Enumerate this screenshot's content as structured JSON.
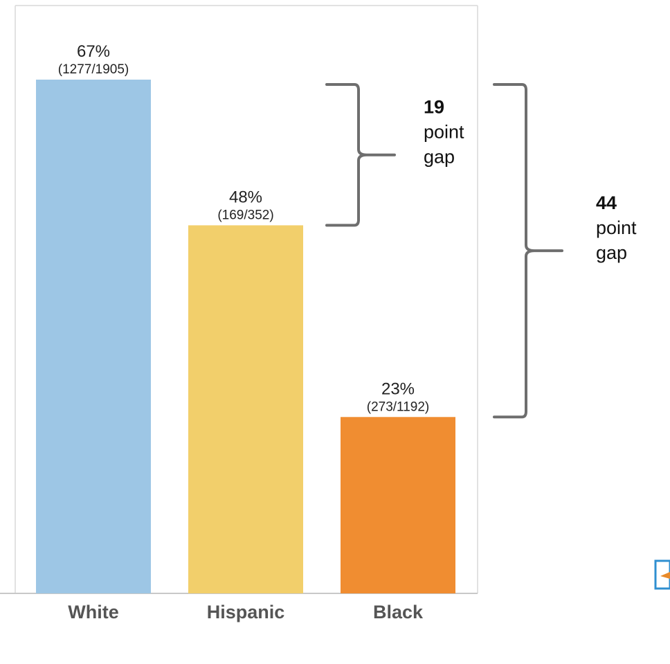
{
  "chart_data": {
    "type": "bar",
    "categories": [
      "White",
      "Hispanic",
      "Black"
    ],
    "values": [
      67,
      48,
      23
    ],
    "value_labels": [
      "67%",
      "48%",
      "23%"
    ],
    "count_labels": [
      "(1277/1905)",
      "(169/352)",
      "(273/1192)"
    ],
    "colors": [
      "#9dc6e5",
      "#f2cf6b",
      "#f08d31"
    ],
    "ylim": [
      0,
      67
    ],
    "grid": false,
    "annotations": [
      {
        "from": "White",
        "to": "Hispanic",
        "value": "19",
        "text_lines": [
          "point",
          "gap"
        ]
      },
      {
        "from": "White",
        "to": "Black",
        "value": "44",
        "text_lines": [
          "point",
          "gap"
        ]
      }
    ]
  }
}
